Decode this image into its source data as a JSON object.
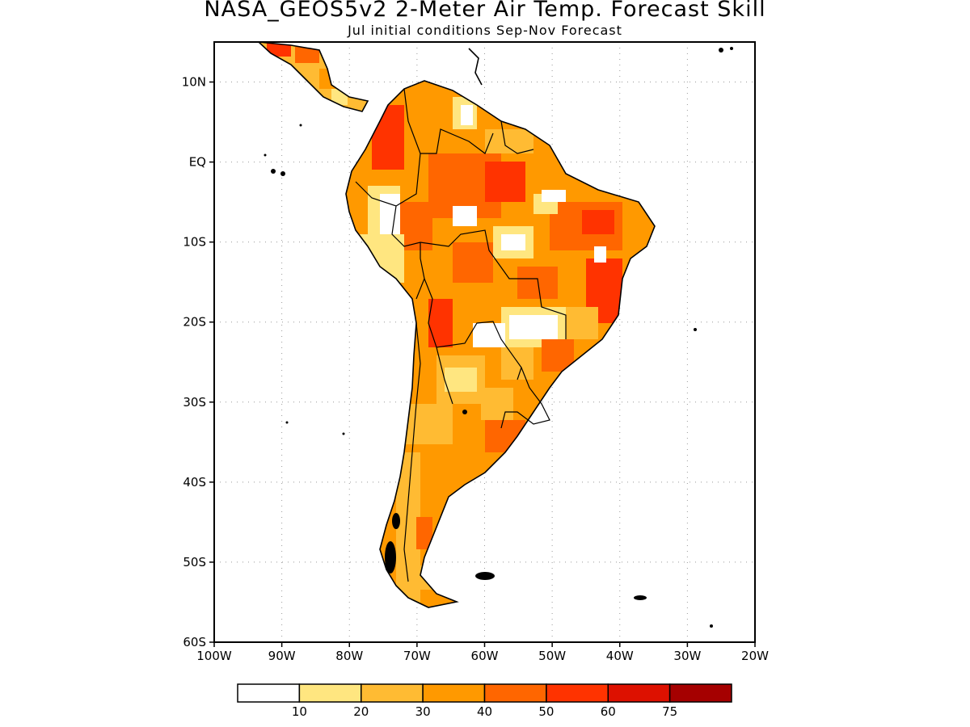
{
  "title": "NASA_GEOS5v2 2-Meter Air Temp. Forecast Skill",
  "subtitle": "Jul initial conditions  Sep-Nov Forecast",
  "map": {
    "lon_range": [
      -100,
      -20
    ],
    "lat_range": [
      -60,
      15
    ],
    "lat_ticks": [
      {
        "value": 10,
        "label": "10N"
      },
      {
        "value": 0,
        "label": "EQ"
      },
      {
        "value": -10,
        "label": "10S"
      },
      {
        "value": -20,
        "label": "20S"
      },
      {
        "value": -30,
        "label": "30S"
      },
      {
        "value": -40,
        "label": "40S"
      },
      {
        "value": -50,
        "label": "50S"
      },
      {
        "value": -60,
        "label": "60S"
      }
    ],
    "lon_ticks": [
      {
        "value": -100,
        "label": "100W"
      },
      {
        "value": -90,
        "label": "90W"
      },
      {
        "value": -80,
        "label": "80W"
      },
      {
        "value": -70,
        "label": "70W"
      },
      {
        "value": -60,
        "label": "60W"
      },
      {
        "value": -50,
        "label": "50W"
      },
      {
        "value": -40,
        "label": "40W"
      },
      {
        "value": -30,
        "label": "30W"
      },
      {
        "value": -20,
        "label": "20W"
      }
    ],
    "grid": true
  },
  "colorbar": {
    "colors": [
      "#ffffff",
      "#ffe680",
      "#ffbb33",
      "#ff9900",
      "#ff6600",
      "#ff3300",
      "#dd1100",
      "#a50000"
    ],
    "labels": [
      "10",
      "20",
      "30",
      "40",
      "50",
      "60",
      "75"
    ]
  }
}
